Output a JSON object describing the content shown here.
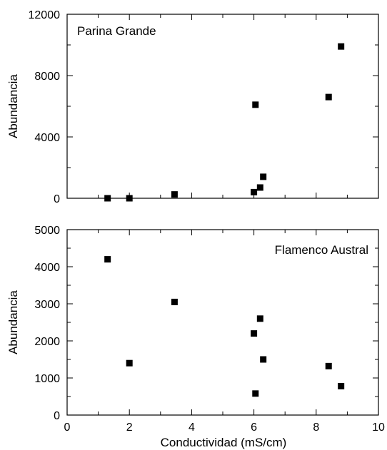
{
  "xlabel": "Conductividad (mS/cm)",
  "chart_data": [
    {
      "type": "scatter",
      "title": "Parina Grande",
      "ylabel": "Abundancia",
      "xlim": [
        0,
        10
      ],
      "ylim": [
        0,
        12000
      ],
      "xticks": [
        0,
        2,
        4,
        6,
        8,
        10
      ],
      "yticks": [
        0,
        4000,
        8000,
        12000
      ],
      "ytick_labels": [
        "0",
        "4000",
        "8000",
        "12000"
      ],
      "grid": false,
      "marker": "square",
      "color": "#000000",
      "points": [
        {
          "x": 1.3,
          "y": 0
        },
        {
          "x": 2.0,
          "y": 0
        },
        {
          "x": 3.45,
          "y": 250
        },
        {
          "x": 6.0,
          "y": 400
        },
        {
          "x": 6.05,
          "y": 6100
        },
        {
          "x": 6.2,
          "y": 700
        },
        {
          "x": 6.3,
          "y": 1400
        },
        {
          "x": 8.4,
          "y": 6600
        },
        {
          "x": 8.8,
          "y": 9900
        }
      ]
    },
    {
      "type": "scatter",
      "title": "Flamenco Austral",
      "ylabel": "Abundancia",
      "xlabel": "Conductividad (mS/cm)",
      "xlim": [
        0,
        10
      ],
      "ylim": [
        0,
        5000
      ],
      "xticks": [
        0,
        2,
        4,
        6,
        8,
        10
      ],
      "xtick_labels": [
        "0",
        "2",
        "4",
        "6",
        "8",
        "10"
      ],
      "yticks": [
        0,
        1000,
        2000,
        3000,
        4000,
        5000
      ],
      "ytick_labels": [
        "0",
        "1000",
        "2000",
        "3000",
        "4000",
        "5000"
      ],
      "grid": false,
      "marker": "square",
      "color": "#000000",
      "points": [
        {
          "x": 1.3,
          "y": 4200
        },
        {
          "x": 2.0,
          "y": 1400
        },
        {
          "x": 3.45,
          "y": 3050
        },
        {
          "x": 6.0,
          "y": 2200
        },
        {
          "x": 6.05,
          "y": 580
        },
        {
          "x": 6.2,
          "y": 2600
        },
        {
          "x": 6.3,
          "y": 1500
        },
        {
          "x": 8.4,
          "y": 1320
        },
        {
          "x": 8.8,
          "y": 780
        }
      ]
    }
  ]
}
